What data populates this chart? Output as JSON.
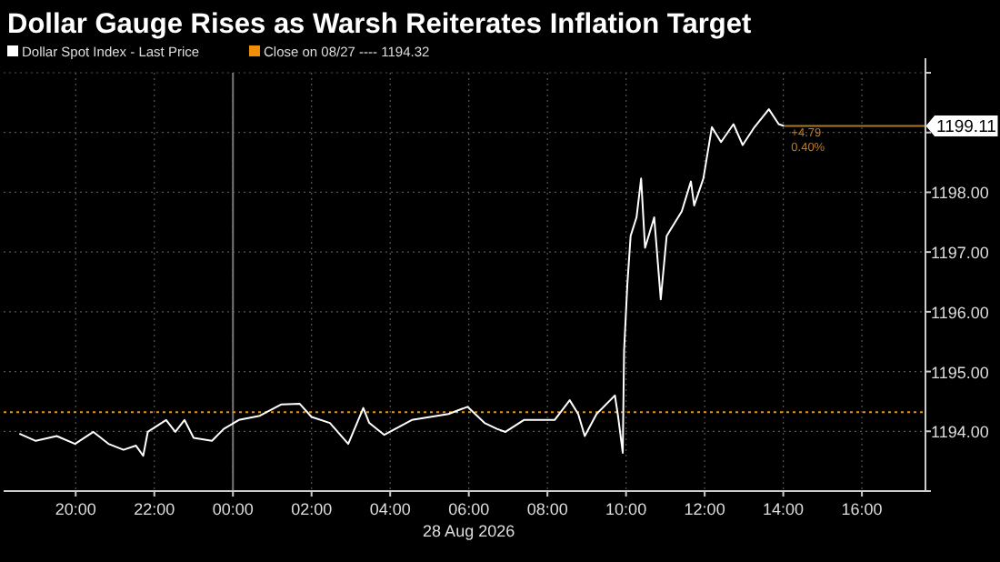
{
  "chart_data": {
    "type": "line",
    "title": "Dollar Gauge Rises as Warsh Reiterates Inflation Target",
    "xlabel": "28 Aug 2026",
    "series": [
      {
        "name": "Dollar Spot Index - Last Price",
        "color": "#ffffff",
        "x": [
          "2026-08-27T18:34",
          "2026-08-27T18:59",
          "2026-08-27T19:31",
          "2026-08-27T19:59",
          "2026-08-27T20:27",
          "2026-08-27T20:50",
          "2026-08-27T21:13",
          "2026-08-27T21:32",
          "2026-08-27T21:43",
          "2026-08-27T21:50",
          "2026-08-27T22:18",
          "2026-08-27T22:32",
          "2026-08-27T22:46",
          "2026-08-27T23:00",
          "2026-08-27T23:28",
          "2026-08-27T23:46",
          "2026-08-28T00:09",
          "2026-08-28T00:41",
          "2026-08-28T01:14",
          "2026-08-28T01:42",
          "2026-08-28T02:00",
          "2026-08-28T02:28",
          "2026-08-28T02:56",
          "2026-08-28T03:19",
          "2026-08-28T03:28",
          "2026-08-28T03:51",
          "2026-08-28T04:33",
          "2026-08-28T05:29",
          "2026-08-28T05:58",
          "2026-08-28T06:24",
          "2026-08-28T06:43",
          "2026-08-28T06:56",
          "2026-08-28T07:24",
          "2026-08-28T08:11",
          "2026-08-28T08:34",
          "2026-08-28T08:47",
          "2026-08-28T08:57",
          "2026-08-28T09:15",
          "2026-08-28T09:43",
          "2026-08-28T09:48",
          "2026-08-28T09:55",
          "2026-08-28T09:57",
          "2026-08-28T10:02",
          "2026-08-28T10:07",
          "2026-08-28T10:16",
          "2026-08-28T10:23",
          "2026-08-28T10:29",
          "2026-08-28T10:43",
          "2026-08-28T10:53",
          "2026-08-28T11:02",
          "2026-08-28T11:25",
          "2026-08-28T11:39",
          "2026-08-28T11:44",
          "2026-08-28T11:58",
          "2026-08-28T12:11",
          "2026-08-28T12:25",
          "2026-08-28T12:44",
          "2026-08-28T12:58",
          "2026-08-28T13:16",
          "2026-08-28T13:38",
          "2026-08-28T13:53",
          "2026-08-28T14:01"
        ],
        "values": [
          1193.96,
          1193.84,
          1193.92,
          1193.79,
          1193.99,
          1193.79,
          1193.69,
          1193.76,
          1193.59,
          1193.99,
          1194.19,
          1193.99,
          1194.19,
          1193.89,
          1193.84,
          1194.04,
          1194.19,
          1194.26,
          1194.45,
          1194.46,
          1194.24,
          1194.14,
          1193.79,
          1194.39,
          1194.14,
          1193.94,
          1194.19,
          1194.29,
          1194.41,
          1194.14,
          1194.04,
          1193.99,
          1194.19,
          1194.19,
          1194.52,
          1194.29,
          1193.92,
          1194.29,
          1194.6,
          1194.24,
          1193.64,
          1195.35,
          1196.46,
          1197.27,
          1197.58,
          1198.23,
          1197.07,
          1197.58,
          1196.21,
          1197.27,
          1197.68,
          1198.18,
          1197.78,
          1198.23,
          1199.09,
          1198.84,
          1199.14,
          1198.79,
          1199.09,
          1199.39,
          1199.14,
          1199.11
        ]
      }
    ],
    "xlim": [
      "2026-08-27T18:10",
      "2026-08-28T17:37"
    ],
    "xticks": [
      {
        "value": "2026-08-27T20:00",
        "label": "20:00"
      },
      {
        "value": "2026-08-27T22:00",
        "label": "22:00"
      },
      {
        "value": "2026-08-28T00:00",
        "label": "00:00"
      },
      {
        "value": "2026-08-28T02:00",
        "label": "02:00"
      },
      {
        "value": "2026-08-28T04:00",
        "label": "04:00"
      },
      {
        "value": "2026-08-28T06:00",
        "label": "06:00"
      },
      {
        "value": "2026-08-28T08:00",
        "label": "08:00"
      },
      {
        "value": "2026-08-28T10:00",
        "label": "10:00"
      },
      {
        "value": "2026-08-28T12:00",
        "label": "12:00"
      },
      {
        "value": "2026-08-28T14:00",
        "label": "14:00"
      },
      {
        "value": "2026-08-28T16:00",
        "label": "16:00"
      }
    ],
    "ylim": [
      1193,
      1200
    ],
    "yticks": [
      {
        "value": 1193,
        "label": null
      },
      {
        "value": 1194,
        "label": "1194.00"
      },
      {
        "value": 1195,
        "label": "1195.00"
      },
      {
        "value": 1196,
        "label": "1196.00"
      },
      {
        "value": 1197,
        "label": "1197.00"
      },
      {
        "value": 1198,
        "label": "1198.00"
      },
      {
        "value": 1199,
        "label": null
      },
      {
        "value": 1200,
        "label": null
      }
    ],
    "grid": true,
    "legend": "top left",
    "line_style": "solid",
    "marker": "none",
    "ref_lines": [
      {
        "axis": "y",
        "value": 1194.32,
        "label": "Close on 08/27 ---- 1194.32",
        "color": "#f0900a",
        "line_style": "dotted"
      },
      {
        "axis": "y",
        "value": 1199.11,
        "label": "1199.11",
        "color": "#a8782e",
        "line_style": "solid"
      },
      {
        "axis": "x",
        "value": "2026-08-28T00:00",
        "color": "#777777",
        "line_style": "solid"
      }
    ],
    "annotations": [
      {
        "text": "+4.79",
        "x": "2026-08-28T14:01",
        "y": 1199.11
      },
      {
        "text": "0.40%",
        "x": "2026-08-28T14:01",
        "y": 1199.11
      }
    ]
  }
}
